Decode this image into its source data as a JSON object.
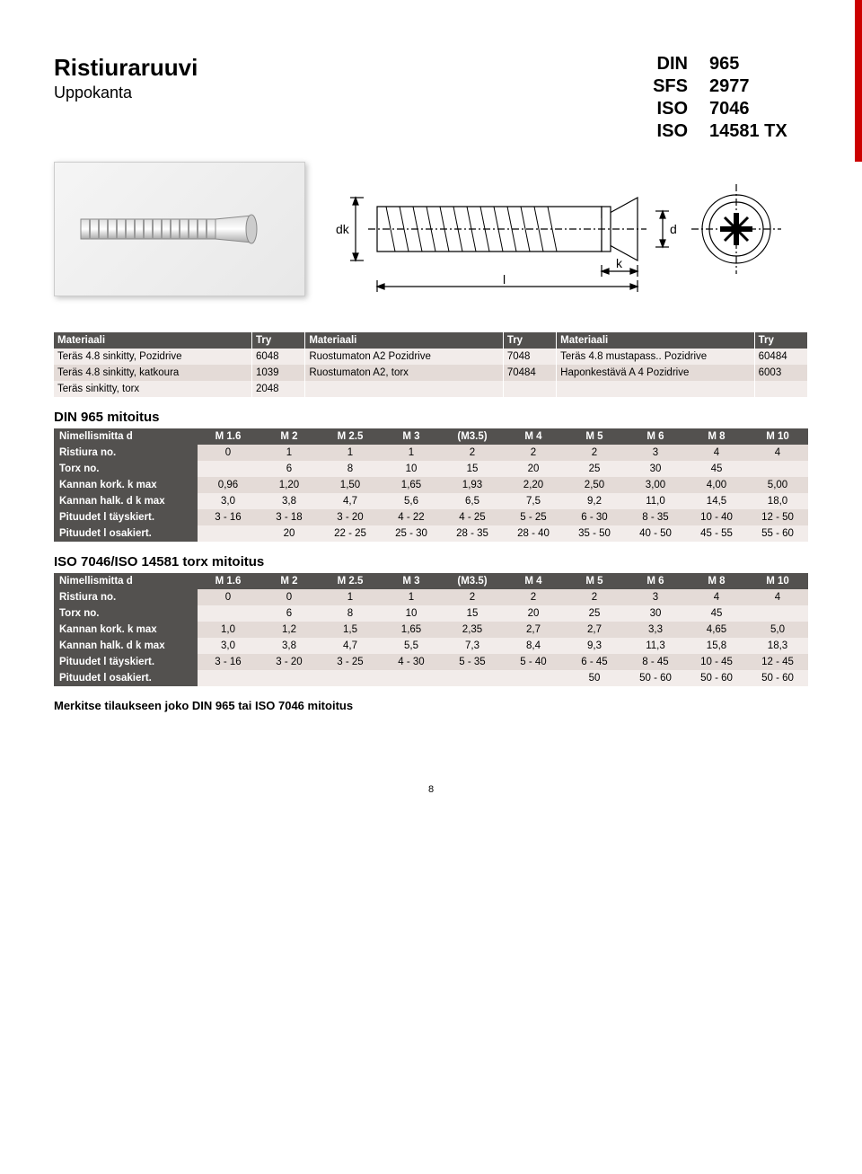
{
  "title": "Ristiuraruuvi",
  "subtitle": "Uppokanta",
  "standards": [
    {
      "lbl": "DIN",
      "val": "965"
    },
    {
      "lbl": "SFS",
      "val": "2977"
    },
    {
      "lbl": "ISO",
      "val": "7046"
    },
    {
      "lbl": "ISO",
      "val": "14581 TX"
    }
  ],
  "colors": {
    "header_bg": "#53514f",
    "row_light": "#f2ecea",
    "row_dark": "#e4dbd7",
    "edge": "#c00"
  },
  "materials": {
    "header": [
      "Materiaali",
      "Try",
      "Materiaali",
      "Try",
      "Materiaali",
      "Try"
    ],
    "rows": [
      [
        "Teräs 4.8 sinkitty, Pozidrive",
        "6048",
        "Ruostumaton A2 Pozidrive",
        "7048",
        "Teräs 4.8 mustapass.. Pozidrive",
        "60484"
      ],
      [
        "Teräs 4.8 sinkitty, katkoura",
        "1039",
        "Ruostumaton A2, torx",
        "70484",
        "Haponkestävä A 4 Pozidrive",
        "6003"
      ],
      [
        "Teräs sinkitty, torx",
        "2048",
        "",
        "",
        "",
        ""
      ]
    ]
  },
  "din965_title": "DIN 965 mitoitus",
  "din965": {
    "header": [
      "Nimellismitta d",
      "M 1.6",
      "M 2",
      "M 2.5",
      "M 3",
      "(M3.5)",
      "M 4",
      "M 5",
      "M 6",
      "M 8",
      "M 10"
    ],
    "rows": [
      {
        "c": "dark",
        "cells": [
          "Ristiura no.",
          "0",
          "1",
          "1",
          "1",
          "2",
          "2",
          "2",
          "3",
          "4",
          "4"
        ]
      },
      {
        "c": "light",
        "cells": [
          "Torx no.",
          "",
          "6",
          "8",
          "10",
          "15",
          "20",
          "25",
          "30",
          "45",
          ""
        ]
      },
      {
        "c": "dark",
        "cells": [
          "Kannan kork. k max",
          "0,96",
          "1,20",
          "1,50",
          "1,65",
          "1,93",
          "2,20",
          "2,50",
          "3,00",
          "4,00",
          "5,00"
        ]
      },
      {
        "c": "light",
        "cells": [
          "Kannan halk. d k max",
          "3,0",
          "3,8",
          "4,7",
          "5,6",
          "6,5",
          "7,5",
          "9,2",
          "11,0",
          "14,5",
          "18,0"
        ]
      },
      {
        "c": "dark",
        "cells": [
          "Pituudet l täyskiert.",
          "3 - 16",
          "3 - 18",
          "3 - 20",
          "4 - 22",
          "4 - 25",
          "5 - 25",
          "6 - 30",
          "8 - 35",
          "10 - 40",
          "12 - 50"
        ]
      },
      {
        "c": "light",
        "cells": [
          "Pituudet l osakiert.",
          "",
          "20",
          "22 - 25",
          "25 - 30",
          "28 - 35",
          "28 - 40",
          "35 - 50",
          "40 - 50",
          "45 - 55",
          "55 - 60"
        ]
      }
    ]
  },
  "iso_title": "ISO 7046/ISO 14581 torx mitoitus",
  "iso": {
    "header": [
      "Nimellismitta d",
      "M 1.6",
      "M 2",
      "M 2.5",
      "M 3",
      "(M3.5)",
      "M 4",
      "M 5",
      "M 6",
      "M 8",
      "M 10"
    ],
    "rows": [
      {
        "c": "dark",
        "cells": [
          "Ristiura no.",
          "0",
          "0",
          "1",
          "1",
          "2",
          "2",
          "2",
          "3",
          "4",
          "4"
        ]
      },
      {
        "c": "light",
        "cells": [
          "Torx no.",
          "",
          "6",
          "8",
          "10",
          "15",
          "20",
          "25",
          "30",
          "45",
          ""
        ]
      },
      {
        "c": "dark",
        "cells": [
          "Kannan kork. k max",
          "1,0",
          "1,2",
          "1,5",
          "1,65",
          "2,35",
          "2,7",
          "2,7",
          "3,3",
          "4,65",
          "5,0"
        ]
      },
      {
        "c": "light",
        "cells": [
          "Kannan halk. d k max",
          "3,0",
          "3,8",
          "4,7",
          "5,5",
          "7,3",
          "8,4",
          "9,3",
          "11,3",
          "15,8",
          "18,3"
        ]
      },
      {
        "c": "dark",
        "cells": [
          "Pituudet l täyskiert.",
          "3 - 16",
          "3 - 20",
          "3 - 25",
          "4 - 30",
          "5 - 35",
          "5 - 40",
          "6 - 45",
          "8 - 45",
          "10 - 45",
          "12 - 45"
        ]
      },
      {
        "c": "light",
        "cells": [
          "Pituudet l osakiert.",
          "",
          "",
          "",
          "",
          "",
          "",
          "50",
          "50 - 60",
          "50 - 60",
          "50 - 60"
        ]
      }
    ]
  },
  "note": "Merkitse tilaukseen joko DIN 965 tai ISO 7046 mitoitus",
  "page": "8",
  "diagram_labels": {
    "dk": "dk",
    "d": "d",
    "k": "k",
    "l": "l"
  }
}
